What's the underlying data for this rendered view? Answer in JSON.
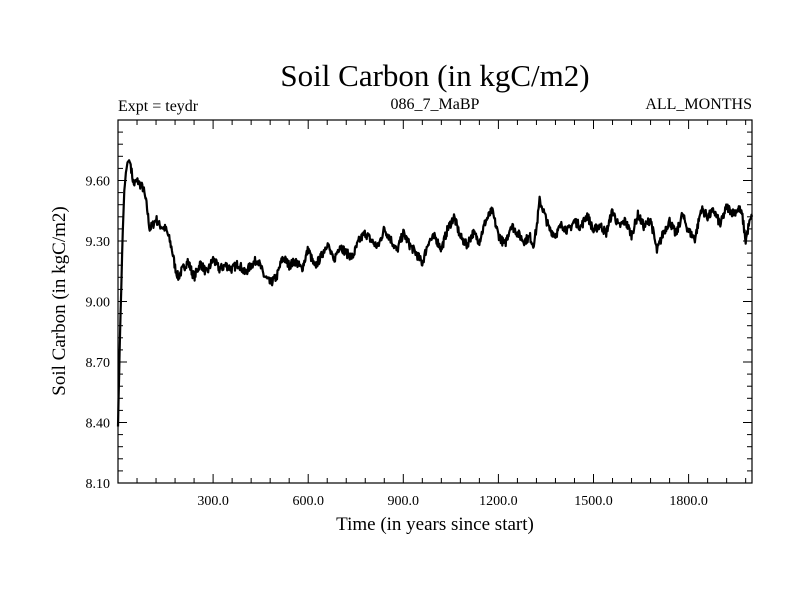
{
  "chart_data": {
    "type": "line",
    "title": "Soil Carbon (in kgC/m2)",
    "subtitle_left": "Expt = teydr",
    "subtitle_center": "086_7_MaBP",
    "subtitle_right": "ALL_MONTHS",
    "xlabel": "Time (in years since start)",
    "ylabel": "Soil Carbon (in kgC/m2)",
    "xlim": [
      0,
      2000
    ],
    "ylim": [
      8.1,
      9.9
    ],
    "x_ticks": [
      300,
      600,
      900,
      1200,
      1500,
      1800
    ],
    "x_tick_labels": [
      "300.0",
      "600.0",
      "900.0",
      "1200.0",
      "1500.0",
      "1800.0"
    ],
    "y_ticks": [
      8.1,
      8.4,
      8.7,
      9.0,
      9.3,
      9.6
    ],
    "y_tick_labels": [
      "8.10",
      "8.40",
      "8.70",
      "9.00",
      "9.30",
      "9.60"
    ],
    "grid": false,
    "series": [
      {
        "color": "#000000",
        "x": [
          0,
          5,
          10,
          15,
          20,
          25,
          30,
          35,
          40,
          45,
          50,
          60,
          70,
          80,
          90,
          95,
          100,
          110,
          120,
          130,
          140,
          150,
          160,
          170,
          180,
          190,
          200,
          220,
          240,
          260,
          280,
          300,
          320,
          340,
          360,
          380,
          400,
          420,
          440,
          460,
          480,
          500,
          520,
          540,
          560,
          580,
          600,
          620,
          640,
          660,
          680,
          700,
          720,
          740,
          760,
          780,
          800,
          820,
          840,
          860,
          880,
          900,
          920,
          940,
          960,
          980,
          1000,
          1020,
          1040,
          1060,
          1080,
          1100,
          1120,
          1140,
          1160,
          1180,
          1200,
          1220,
          1240,
          1260,
          1280,
          1300,
          1310,
          1320,
          1330,
          1340,
          1360,
          1380,
          1400,
          1420,
          1440,
          1460,
          1480,
          1500,
          1520,
          1540,
          1560,
          1580,
          1600,
          1620,
          1640,
          1660,
          1680,
          1700,
          1720,
          1740,
          1760,
          1780,
          1800,
          1820,
          1840,
          1860,
          1880,
          1900,
          1920,
          1940,
          1960,
          1970,
          1980,
          1990,
          2000
        ],
        "y": [
          8.38,
          8.75,
          9.05,
          9.35,
          9.55,
          9.64,
          9.69,
          9.7,
          9.68,
          9.62,
          9.58,
          9.6,
          9.58,
          9.56,
          9.48,
          9.42,
          9.36,
          9.38,
          9.41,
          9.38,
          9.37,
          9.36,
          9.32,
          9.26,
          9.17,
          9.12,
          9.15,
          9.2,
          9.12,
          9.19,
          9.14,
          9.21,
          9.16,
          9.18,
          9.16,
          9.19,
          9.14,
          9.18,
          9.21,
          9.13,
          9.09,
          9.12,
          9.22,
          9.18,
          9.2,
          9.16,
          9.26,
          9.17,
          9.22,
          9.29,
          9.2,
          9.28,
          9.24,
          9.22,
          9.3,
          9.34,
          9.3,
          9.27,
          9.36,
          9.31,
          9.25,
          9.34,
          9.28,
          9.24,
          9.19,
          9.3,
          9.32,
          9.26,
          9.36,
          9.42,
          9.32,
          9.28,
          9.34,
          9.3,
          9.4,
          9.45,
          9.33,
          9.28,
          9.38,
          9.34,
          9.3,
          9.32,
          9.28,
          9.36,
          9.5,
          9.46,
          9.36,
          9.33,
          9.38,
          9.35,
          9.4,
          9.37,
          9.43,
          9.35,
          9.38,
          9.34,
          9.45,
          9.37,
          9.4,
          9.33,
          9.43,
          9.37,
          9.41,
          9.25,
          9.34,
          9.4,
          9.33,
          9.43,
          9.35,
          9.31,
          9.46,
          9.42,
          9.45,
          9.38,
          9.47,
          9.44,
          9.46,
          9.42,
          9.3,
          9.38,
          9.42
        ]
      }
    ]
  }
}
